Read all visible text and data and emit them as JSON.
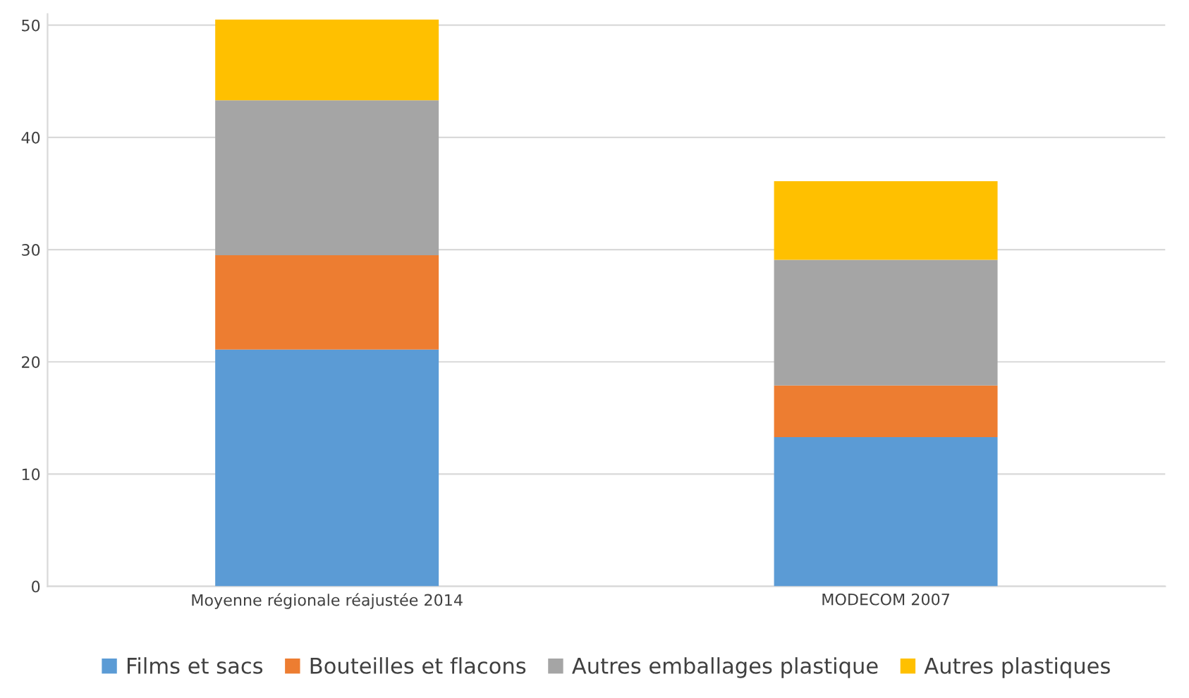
{
  "chart_data": {
    "type": "bar",
    "stacked": true,
    "categories": [
      "Moyenne régionale réajustée 2014",
      "MODECOM 2007"
    ],
    "series": [
      {
        "name": "Films et sacs",
        "color": "#5b9bd5",
        "values": [
          21.1,
          13.3
        ]
      },
      {
        "name": "Bouteilles et flacons",
        "color": "#ed7d31",
        "values": [
          8.4,
          4.6
        ]
      },
      {
        "name": "Autres emballages plastique",
        "color": "#a5a5a5",
        "values": [
          13.8,
          11.2
        ]
      },
      {
        "name": "Autres plastiques",
        "color": "#ffc000",
        "values": [
          7.2,
          7.0
        ]
      }
    ],
    "ylim": [
      0,
      51
    ],
    "yticks": [
      0,
      10,
      20,
      30,
      40,
      50
    ],
    "grid": "y",
    "legend": "bottom"
  }
}
